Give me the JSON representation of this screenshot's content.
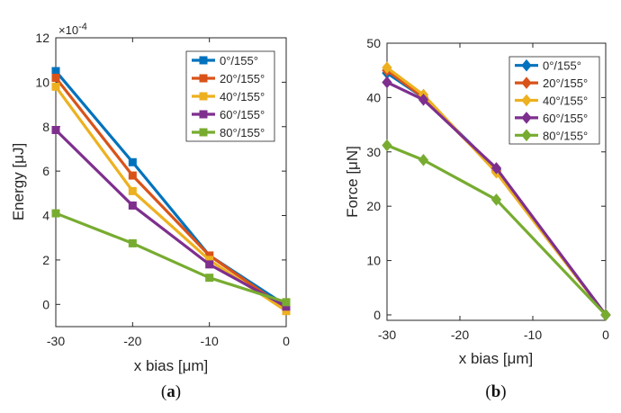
{
  "chart_data": [
    {
      "type": "line",
      "panel_label": "(a)",
      "caption_letter": "a",
      "xlabel": "x bias [μm]",
      "ylabel": "Energy [μJ]",
      "y_exponent_label": "×10",
      "y_exponent": "-4",
      "xlim": [
        -30,
        0
      ],
      "ylim": [
        -1,
        12
      ],
      "xticks": [
        -30,
        -20,
        -10,
        0
      ],
      "yticks": [
        0,
        2,
        4,
        6,
        8,
        10,
        12
      ],
      "marker": "square",
      "legend_position": "top-right",
      "x": [
        -30,
        -20,
        -10,
        0
      ],
      "series": [
        {
          "name": "0°/155°",
          "color": "#0072BD",
          "values": [
            10.5,
            6.4,
            2.2,
            -0.05
          ]
        },
        {
          "name": "20°/155°",
          "color": "#D95319",
          "values": [
            10.2,
            5.8,
            2.2,
            -0.2
          ]
        },
        {
          "name": "40°/155°",
          "color": "#EDB120",
          "values": [
            9.8,
            5.1,
            2.0,
            -0.3
          ]
        },
        {
          "name": "60°/155°",
          "color": "#7E2F8E",
          "values": [
            7.85,
            4.45,
            1.8,
            -0.1
          ]
        },
        {
          "name": "80°/155°",
          "color": "#77AC30",
          "values": [
            4.1,
            2.75,
            1.2,
            0.1
          ]
        }
      ]
    },
    {
      "type": "line",
      "panel_label": "(b)",
      "caption_letter": "b",
      "xlabel": "x bias [μm]",
      "ylabel": "Force [μN]",
      "xlim": [
        -30,
        0
      ],
      "ylim": [
        -1,
        50
      ],
      "xticks": [
        -30,
        -20,
        -10,
        0
      ],
      "yticks": [
        0,
        10,
        20,
        30,
        40,
        50
      ],
      "marker": "diamond",
      "legend_position": "top-right",
      "x": [
        -30,
        -25,
        -15,
        0
      ],
      "series": [
        {
          "name": "0°/155°",
          "color": "#0072BD",
          "values": [
            44.5,
            40.0,
            26.8,
            0
          ]
        },
        {
          "name": "20°/155°",
          "color": "#D95319",
          "values": [
            45.0,
            40.0,
            26.5,
            0
          ]
        },
        {
          "name": "40°/155°",
          "color": "#EDB120",
          "values": [
            45.5,
            40.5,
            26.2,
            0
          ]
        },
        {
          "name": "60°/155°",
          "color": "#7E2F8E",
          "values": [
            42.8,
            39.6,
            27.0,
            0
          ]
        },
        {
          "name": "80°/155°",
          "color": "#77AC30",
          "values": [
            31.2,
            28.5,
            21.2,
            0
          ]
        }
      ]
    }
  ]
}
